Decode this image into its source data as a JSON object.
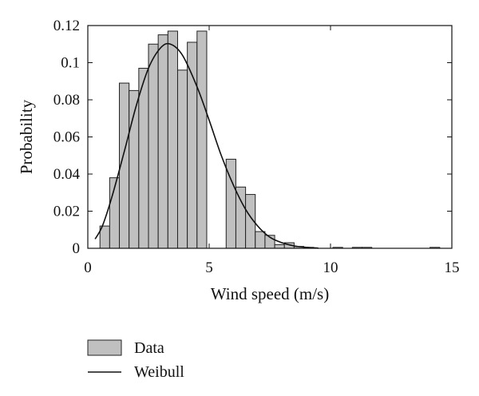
{
  "chart_data": {
    "type": "bar",
    "title": "",
    "xlabel": "Wind speed (m/s)",
    "ylabel": "Probability",
    "xlim": [
      0,
      15
    ],
    "ylim": [
      0,
      0.12
    ],
    "xticks": [
      0,
      5,
      10,
      15
    ],
    "yticks": [
      0,
      0.02,
      0.04,
      0.06,
      0.08,
      0.1,
      0.12
    ],
    "ytick_labels": [
      "0",
      "0.02",
      "0.04",
      "0.06",
      "0.08",
      "0.1",
      "0.12"
    ],
    "xtick_labels": [
      "0",
      "5",
      "10",
      "15"
    ],
    "grid": false,
    "legend_position": "bottom-left",
    "series": [
      {
        "name": "Data",
        "type": "bar",
        "bin_width": 0.4,
        "color": "#c0c0c0",
        "x": [
          0.7,
          1.1,
          1.5,
          1.9,
          2.3,
          2.7,
          3.1,
          3.5,
          3.9,
          4.3,
          4.7,
          5.1,
          5.5,
          5.9,
          6.3,
          6.7,
          7.1,
          7.5,
          7.9,
          8.3,
          8.7,
          9.1,
          9.5,
          9.9,
          10.3,
          10.7,
          11.1,
          11.5,
          11.9,
          12.3,
          12.7,
          13.1,
          13.5,
          13.9,
          14.3
        ],
        "values": [
          0.012,
          0.038,
          0.089,
          0.085,
          0.097,
          0.11,
          0.115,
          0.117,
          0.096,
          0.111,
          0.117,
          0,
          0,
          0.048,
          0.033,
          0.029,
          0.009,
          0.007,
          0.002,
          0.003,
          0.001,
          0.0005,
          0,
          0,
          0.0005,
          0,
          0.0005,
          0.0005,
          0,
          0,
          0,
          0,
          0,
          0,
          0.0005
        ]
      },
      {
        "name": "Weibull",
        "type": "line",
        "color": "#111111",
        "x": [
          0.3,
          0.6,
          1.0,
          1.5,
          2.0,
          2.5,
          3.0,
          3.4,
          3.9,
          4.5,
          5.0,
          5.5,
          6.0,
          6.5,
          7.0,
          7.5,
          8.0,
          8.5,
          9.0,
          9.5
        ],
        "values": [
          0.005,
          0.012,
          0.028,
          0.052,
          0.077,
          0.097,
          0.108,
          0.11,
          0.104,
          0.087,
          0.069,
          0.05,
          0.034,
          0.021,
          0.012,
          0.006,
          0.003,
          0.0013,
          0.0005,
          0.0001
        ]
      }
    ]
  },
  "legend": {
    "items": [
      {
        "label": "Data",
        "kind": "box"
      },
      {
        "label": "Weibull",
        "kind": "line"
      }
    ]
  }
}
